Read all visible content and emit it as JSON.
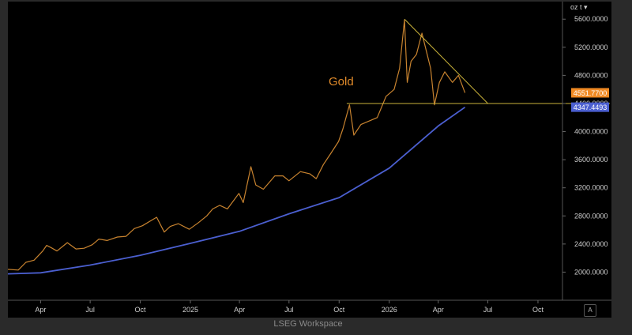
{
  "footer": {
    "brand": "LSEG Workspace"
  },
  "toolbar": {
    "unit_label": "oz t",
    "auto_button": "A"
  },
  "chart_data": {
    "type": "line",
    "title": "Gold",
    "x_axis": {
      "range": [
        "2024-02-01",
        "2026-11-15"
      ],
      "ticks": [
        {
          "label": "Apr",
          "date": "2024-04-01"
        },
        {
          "label": "Jul",
          "date": "2024-07-01"
        },
        {
          "label": "Oct",
          "date": "2024-10-01"
        },
        {
          "label": "2025",
          "date": "2025-01-01"
        },
        {
          "label": "Apr",
          "date": "2025-04-01"
        },
        {
          "label": "Jul",
          "date": "2025-07-01"
        },
        {
          "label": "Oct",
          "date": "2025-10-01"
        },
        {
          "label": "2026",
          "date": "2026-01-01"
        },
        {
          "label": "Apr",
          "date": "2026-04-01"
        },
        {
          "label": "Jul",
          "date": "2026-07-01"
        },
        {
          "label": "Oct",
          "date": "2026-10-01"
        }
      ]
    },
    "y_axis": {
      "position": "right",
      "range": [
        1600,
        5850
      ],
      "ticks": [
        "2000.0000",
        "2400.0000",
        "2800.0000",
        "3200.0000",
        "3600.0000",
        "4000.0000",
        "4400.0000",
        "4800.0000",
        "5200.0000",
        "5600.0000"
      ]
    },
    "grid": false,
    "colors": {
      "price": "#c8832f",
      "average": "#4b5fd0",
      "trendline": "#c9b23a"
    },
    "series": [
      {
        "name": "Gold",
        "points": [
          [
            "2024-02-01",
            2040
          ],
          [
            "2024-02-20",
            2030
          ],
          [
            "2024-03-05",
            2140
          ],
          [
            "2024-03-20",
            2170
          ],
          [
            "2024-04-05",
            2300
          ],
          [
            "2024-04-12",
            2380
          ],
          [
            "2024-04-20",
            2350
          ],
          [
            "2024-05-01",
            2300
          ],
          [
            "2024-05-20",
            2420
          ],
          [
            "2024-06-05",
            2330
          ],
          [
            "2024-06-20",
            2340
          ],
          [
            "2024-07-05",
            2390
          ],
          [
            "2024-07-17",
            2470
          ],
          [
            "2024-08-01",
            2450
          ],
          [
            "2024-08-20",
            2500
          ],
          [
            "2024-09-05",
            2510
          ],
          [
            "2024-09-20",
            2620
          ],
          [
            "2024-10-05",
            2660
          ],
          [
            "2024-10-22",
            2740
          ],
          [
            "2024-10-31",
            2780
          ],
          [
            "2024-11-14",
            2570
          ],
          [
            "2024-11-25",
            2650
          ],
          [
            "2024-12-10",
            2690
          ],
          [
            "2024-12-30",
            2610
          ],
          [
            "2025-01-15",
            2700
          ],
          [
            "2025-01-31",
            2800
          ],
          [
            "2025-02-11",
            2900
          ],
          [
            "2025-02-24",
            2950
          ],
          [
            "2025-03-10",
            2900
          ],
          [
            "2025-03-31",
            3120
          ],
          [
            "2025-04-08",
            2990
          ],
          [
            "2025-04-22",
            3500
          ],
          [
            "2025-05-01",
            3240
          ],
          [
            "2025-05-15",
            3180
          ],
          [
            "2025-06-05",
            3370
          ],
          [
            "2025-06-20",
            3370
          ],
          [
            "2025-07-01",
            3300
          ],
          [
            "2025-07-22",
            3430
          ],
          [
            "2025-08-08",
            3400
          ],
          [
            "2025-08-20",
            3330
          ],
          [
            "2025-09-02",
            3530
          ],
          [
            "2025-09-15",
            3680
          ],
          [
            "2025-09-30",
            3860
          ],
          [
            "2025-10-08",
            4040
          ],
          [
            "2025-10-20",
            4380
          ],
          [
            "2025-10-28",
            3950
          ],
          [
            "2025-11-10",
            4100
          ],
          [
            "2025-11-25",
            4150
          ],
          [
            "2025-12-10",
            4200
          ],
          [
            "2025-12-26",
            4500
          ],
          [
            "2026-01-10",
            4600
          ],
          [
            "2026-01-20",
            4900
          ],
          [
            "2026-01-29",
            5590
          ],
          [
            "2026-02-03",
            4700
          ],
          [
            "2026-02-10",
            5000
          ],
          [
            "2026-02-20",
            5100
          ],
          [
            "2026-03-02",
            5400
          ],
          [
            "2026-03-10",
            5150
          ],
          [
            "2026-03-18",
            4900
          ],
          [
            "2026-03-25",
            4380
          ],
          [
            "2026-04-03",
            4700
          ],
          [
            "2026-04-13",
            4850
          ],
          [
            "2026-04-27",
            4700
          ],
          [
            "2026-05-08",
            4800
          ],
          [
            "2026-05-20",
            4552
          ]
        ]
      },
      {
        "name": "",
        "points": [
          [
            "2024-02-01",
            1975
          ],
          [
            "2024-04-01",
            1990
          ],
          [
            "2024-07-01",
            2100
          ],
          [
            "2024-10-01",
            2240
          ],
          [
            "2025-01-01",
            2410
          ],
          [
            "2025-04-01",
            2580
          ],
          [
            "2025-07-01",
            2830
          ],
          [
            "2025-10-01",
            3060
          ],
          [
            "2026-01-01",
            3480
          ],
          [
            "2026-04-01",
            4080
          ],
          [
            "2026-05-20",
            4347
          ]
        ]
      }
    ],
    "last_values": [
      {
        "series": "Gold",
        "label": "4551.7700",
        "value": 4551.77,
        "bg": "#f08a24",
        "fg": "#ffffff"
      },
      {
        "series": "average",
        "label": "4347.4493",
        "value": 4347.4493,
        "bg": "#4b5fd0",
        "fg": "#ffffff"
      }
    ],
    "annotations": [
      {
        "type": "hline",
        "value": 4400,
        "from": "2025-10-15",
        "to": "2026-11-15"
      },
      {
        "type": "segment",
        "from": [
          "2026-01-29",
          5600
        ],
        "to": [
          "2026-07-01",
          4400
        ]
      }
    ]
  }
}
